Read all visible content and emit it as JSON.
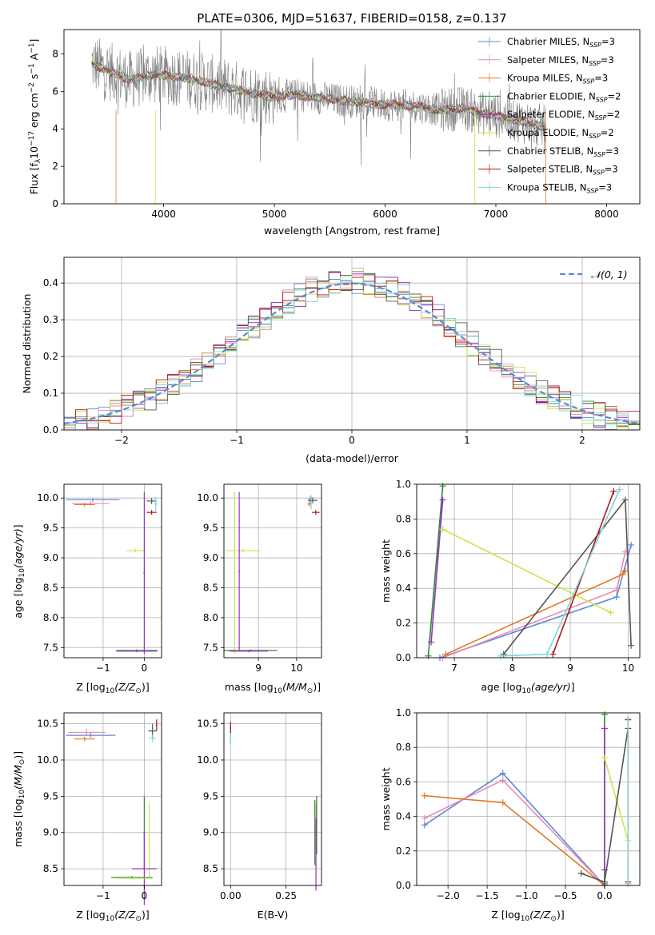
{
  "title": "PLATE=0306, MJD=51637, FIBERID=0158, z=0.137",
  "colors": {
    "chabrier_miles": "#5f87d6",
    "salpeter_miles": "#e68ab8",
    "kroupa_miles": "#e07a2a",
    "chabrier_elodie": "#2e8b3a",
    "salpeter_elodie": "#9a2fc2",
    "kroupa_elodie": "#c4e84a",
    "chabrier_stelib": "#555555",
    "salpeter_stelib": "#b01818",
    "kroupa_stelib": "#7ed6d6",
    "data": "#7f7f7f",
    "gauss": "#5f87d6"
  },
  "chart_data": [
    {
      "id": "spectrum",
      "type": "line",
      "xlabel": "wavelength [Angstrom, rest frame]",
      "ylabel_text": "Flux [f",
      "ylabel_tail": "10",
      "ylabel_unit": "erg cm",
      "ylabel_unit2": "s",
      "ylabel_unit3": "A",
      "xlim": [
        3100,
        8300
      ],
      "ylim": [
        0,
        9.3
      ],
      "xticks": [
        "4000",
        "5000",
        "6000",
        "7000",
        "8000"
      ],
      "yticks": [
        "0",
        "2",
        "4",
        "6",
        "8"
      ],
      "legend": [
        "Chabrier MILES, N_SSP=3",
        "Salpeter MILES, N_SSP=3",
        "Kroupa MILES, N_SSP=3",
        "Chabrier ELODIE, N_SSP=2",
        "Salpeter ELODIE, N_SSP=2",
        "Kroupa ELODIE, N_SSP=2",
        "Chabrier STELIB, N_SSP=3",
        "Salpeter STELIB, N_SSP=3",
        "Kroupa STELIB, N_SSP=3"
      ],
      "continuum_x": [
        3350,
        3500,
        3700,
        3900,
        4100,
        4300,
        4500,
        4800,
        5000,
        5200,
        5500,
        5800,
        6000,
        6300,
        6500,
        6700,
        6900,
        7100,
        7300,
        7450
      ],
      "continuum_y": [
        7.5,
        7.1,
        6.6,
        6.9,
        6.8,
        6.6,
        6.3,
        5.9,
        5.7,
        5.8,
        5.6,
        5.4,
        5.3,
        5.2,
        5.0,
        5.1,
        4.8,
        4.6,
        4.3,
        4.1
      ]
    },
    {
      "id": "residuals",
      "type": "histogram",
      "xlabel": "(data-model)/error",
      "ylabel": "Normed distribution",
      "xlim": [
        -2.5,
        2.5
      ],
      "ylim": [
        0,
        0.47
      ],
      "xticks": [
        "−2",
        "−1",
        "0",
        "1",
        "2"
      ],
      "yticks": [
        "0.0",
        "0.1",
        "0.2",
        "0.3",
        "0.4"
      ],
      "legend_label": "𝒩(0, 1)"
    },
    {
      "id": "age_vs_Z",
      "type": "errorbar",
      "xlabel": "Z [log",
      "ylabel": "age  [log",
      "xlim": [
        -1.95,
        0.42
      ],
      "ylim": [
        7.33,
        10.23
      ],
      "xticks": [
        "−1",
        "0"
      ],
      "yticks": [
        "7.5",
        "8.0",
        "8.5",
        "9.0",
        "9.5",
        "10.0"
      ],
      "points": [
        {
          "series": "chabrier_miles",
          "x": -1.25,
          "y": 9.97,
          "xerr": 0.65,
          "yerr": 0.03
        },
        {
          "series": "salpeter_miles",
          "x": -1.3,
          "y": 9.91,
          "xerr": 0.45,
          "yerr": 0.04
        },
        {
          "series": "kroupa_miles",
          "x": -1.45,
          "y": 9.89,
          "xerr": 0.25,
          "yerr": 0.03
        },
        {
          "series": "kroupa_elodie",
          "x": -0.22,
          "y": 9.12,
          "xerr": 0.22,
          "yerr": 0.03
        },
        {
          "series": "salpeter_elodie",
          "x": 0.0,
          "y": 8.75,
          "xerr": 0.02,
          "yerr": 1.35
        },
        {
          "series": "chabrier_elodie",
          "x": -0.18,
          "y": 7.45,
          "xerr": 0.5,
          "yerr": 0.02
        },
        {
          "series": "salpeter_elodie",
          "x": -0.18,
          "y": 7.44,
          "xerr": 0.5,
          "yerr": 0.02
        },
        {
          "series": "chabrier_stelib",
          "x": 0.18,
          "y": 9.95,
          "xerr": 0.12,
          "yerr": 0.05
        },
        {
          "series": "salpeter_stelib",
          "x": 0.18,
          "y": 9.76,
          "xerr": 0.12,
          "yerr": 0.04
        },
        {
          "series": "kroupa_stelib",
          "x": 0.28,
          "y": 9.9,
          "xerr": 0.04,
          "yerr": 0.12
        }
      ]
    },
    {
      "id": "age_vs_mass",
      "type": "errorbar",
      "xlabel": "mass [log",
      "xlim": [
        8.1,
        10.65
      ],
      "ylim": [
        7.33,
        10.23
      ],
      "xticks": [
        "9",
        "10"
      ],
      "yticks": [
        "7.5",
        "8.0",
        "8.5",
        "9.0",
        "9.5",
        "10.0"
      ],
      "points": [
        {
          "series": "kroupa_elodie",
          "x": 8.6,
          "y": 9.12,
          "xerr": 0.45,
          "yerr": 0.03
        },
        {
          "series": "kroupa_elodie",
          "x": 8.38,
          "y": 8.75,
          "xerr": 0.02,
          "yerr": 1.35
        },
        {
          "series": "salpeter_elodie",
          "x": 8.5,
          "y": 8.77,
          "xerr": 0.02,
          "yerr": 1.33
        },
        {
          "series": "chabrier_elodie",
          "x": 8.8,
          "y": 7.45,
          "xerr": 0.7,
          "yerr": 0.02
        },
        {
          "series": "salpeter_elodie",
          "x": 8.75,
          "y": 7.44,
          "xerr": 0.5,
          "yerr": 0.02
        },
        {
          "series": "chabrier_miles",
          "x": 10.35,
          "y": 9.97,
          "xerr": 0.05,
          "yerr": 0.05
        },
        {
          "series": "salpeter_miles",
          "x": 10.38,
          "y": 9.95,
          "xerr": 0.05,
          "yerr": 0.06
        },
        {
          "series": "kroupa_miles",
          "x": 10.33,
          "y": 9.9,
          "xerr": 0.05,
          "yerr": 0.04
        },
        {
          "series": "chabrier_stelib",
          "x": 10.42,
          "y": 9.96,
          "xerr": 0.12,
          "yerr": 0.05
        },
        {
          "series": "salpeter_stelib",
          "x": 10.5,
          "y": 9.76,
          "xerr": 0.1,
          "yerr": 0.04
        },
        {
          "series": "kroupa_stelib",
          "x": 10.38,
          "y": 9.93,
          "xerr": 0.04,
          "yerr": 0.12
        }
      ]
    },
    {
      "id": "weight_vs_age",
      "type": "line",
      "xlabel": "age  [log",
      "ylabel": "mass weight",
      "xlim": [
        6.35,
        10.2
      ],
      "ylim": [
        0,
        1.0
      ],
      "xticks": [
        "7",
        "8",
        "9",
        "10"
      ],
      "yticks": [
        "0.0",
        "0.2",
        "0.4",
        "0.6",
        "0.8",
        "1.0"
      ],
      "series": [
        {
          "key": "chabrier_miles",
          "x": [
            6.75,
            9.8,
            10.05
          ],
          "y": [
            0.0,
            0.35,
            0.65
          ]
        },
        {
          "key": "salpeter_miles",
          "x": [
            6.8,
            9.8,
            9.95
          ],
          "y": [
            0.0,
            0.39,
            0.61
          ]
        },
        {
          "key": "kroupa_miles",
          "x": [
            6.85,
            9.9,
            9.95
          ],
          "y": [
            0.02,
            0.48,
            0.5
          ]
        },
        {
          "key": "chabrier_elodie",
          "x": [
            6.55,
            6.8
          ],
          "y": [
            0.01,
            0.99
          ]
        },
        {
          "key": "salpeter_elodie",
          "x": [
            6.6,
            6.8
          ],
          "y": [
            0.09,
            0.91
          ]
        },
        {
          "key": "kroupa_elodie",
          "x": [
            6.8,
            9.7
          ],
          "y": [
            0.74,
            0.26
          ]
        },
        {
          "key": "chabrier_stelib",
          "x": [
            7.85,
            9.95,
            10.05
          ],
          "y": [
            0.02,
            0.91,
            0.07
          ]
        },
        {
          "key": "salpeter_stelib",
          "x": [
            8.7,
            9.75
          ],
          "y": [
            0.02,
            0.96
          ]
        },
        {
          "key": "kroupa_stelib",
          "x": [
            7.8,
            8.6,
            9.85
          ],
          "y": [
            0.01,
            0.02,
            0.97
          ]
        }
      ]
    },
    {
      "id": "mass_vs_Z",
      "type": "errorbar",
      "xlabel": "Z [log",
      "ylabel": "mass [log",
      "xlim": [
        -1.95,
        0.42
      ],
      "ylim": [
        8.27,
        10.65
      ],
      "xticks": [
        "−1",
        "0"
      ],
      "yticks": [
        "8.5",
        "9.0",
        "9.5",
        "10.0",
        "10.5"
      ],
      "points": [
        {
          "series": "chabrier_miles",
          "x": -1.3,
          "y": 10.34,
          "xerr": 0.6,
          "yerr": 0.03
        },
        {
          "series": "salpeter_miles",
          "x": -1.4,
          "y": 10.38,
          "xerr": 0.45,
          "yerr": 0.05
        },
        {
          "series": "kroupa_miles",
          "x": -1.45,
          "y": 10.29,
          "xerr": 0.25,
          "yerr": 0.03
        },
        {
          "series": "kroupa_elodie",
          "x": 0.12,
          "y": 8.9,
          "xerr": 0.02,
          "yerr": 0.5
        },
        {
          "series": "chabrier_elodie",
          "x": 0.0,
          "y": 9.0,
          "xerr": 0.02,
          "yerr": 0.5
        },
        {
          "series": "salpeter_elodie",
          "x": 0.0,
          "y": 8.5,
          "xerr": 0.3,
          "yerr": 0.5
        },
        {
          "series": "chabrier_elodie",
          "x": -0.3,
          "y": 8.38,
          "xerr": 0.5,
          "yerr": 0.02
        },
        {
          "series": "kroupa_elodie",
          "x": -0.25,
          "y": 8.37,
          "xerr": 0.45,
          "yerr": 0.02
        },
        {
          "series": "chabrier_stelib",
          "x": 0.2,
          "y": 10.4,
          "xerr": 0.1,
          "yerr": 0.1
        },
        {
          "series": "salpeter_stelib",
          "x": 0.3,
          "y": 10.48,
          "xerr": 0.02,
          "yerr": 0.08
        },
        {
          "series": "kroupa_stelib",
          "x": 0.2,
          "y": 10.3,
          "xerr": 0.08,
          "yerr": 0.05
        }
      ]
    },
    {
      "id": "mass_vs_EBV",
      "type": "errorbar",
      "xlabel": "E(B-V)",
      "xlim": [
        -0.03,
        0.41
      ],
      "ylim": [
        8.27,
        10.65
      ],
      "xticks": [
        "0.00",
        "0.25"
      ],
      "yticks": [
        "8.5",
        "9.0",
        "9.5",
        "10.0",
        "10.5"
      ],
      "points": [
        {
          "series": "chabrier_miles",
          "x": 0.0,
          "y": 10.35,
          "xerr": 0.002,
          "yerr": 0.12
        },
        {
          "series": "salpeter_stelib",
          "x": 0.0,
          "y": 10.45,
          "xerr": 0.002,
          "yerr": 0.08
        },
        {
          "series": "kroupa_stelib",
          "x": 0.0,
          "y": 10.3,
          "xerr": 0.002,
          "yerr": 0.07
        },
        {
          "series": "chabrier_elodie",
          "x": 0.38,
          "y": 9.0,
          "xerr": 0.002,
          "yerr": 0.45
        },
        {
          "series": "kroupa_elodie",
          "x": 0.385,
          "y": 8.9,
          "xerr": 0.002,
          "yerr": 0.5
        },
        {
          "series": "salpeter_elodie",
          "x": 0.385,
          "y": 8.7,
          "xerr": 0.002,
          "yerr": 0.5
        },
        {
          "series": "chabrier_stelib",
          "x": 0.388,
          "y": 9.1,
          "xerr": 0.002,
          "yerr": 0.4
        }
      ]
    },
    {
      "id": "weight_vs_Z",
      "type": "line",
      "xlabel": "Z [log",
      "ylabel": "mass weight",
      "xlim": [
        -2.4,
        0.45
      ],
      "ylim": [
        0,
        1.0
      ],
      "xticks": [
        "−2.0",
        "−1.5",
        "−1.0",
        "−0.5",
        "0.0"
      ],
      "yticks": [
        "0.0",
        "0.2",
        "0.4",
        "0.6",
        "0.8",
        "1.0"
      ],
      "series": [
        {
          "key": "chabrier_miles",
          "x": [
            -2.3,
            -1.3,
            0.0
          ],
          "y": [
            0.35,
            0.65,
            0.0
          ]
        },
        {
          "key": "salpeter_miles",
          "x": [
            -2.3,
            -1.3,
            0.0
          ],
          "y": [
            0.39,
            0.61,
            0.0
          ]
        },
        {
          "key": "kroupa_miles",
          "x": [
            -2.3,
            -1.3,
            0.0
          ],
          "y": [
            0.52,
            0.48,
            0.0
          ]
        },
        {
          "key": "chabrier_elodie",
          "x": [
            0.0,
            0.0
          ],
          "y": [
            0.01,
            0.99
          ]
        },
        {
          "key": "salpeter_elodie",
          "x": [
            0.0,
            0.0
          ],
          "y": [
            0.09,
            0.91
          ]
        },
        {
          "key": "kroupa_elodie",
          "x": [
            0.0,
            0.3
          ],
          "y": [
            0.74,
            0.26
          ]
        },
        {
          "key": "chabrier_stelib",
          "x": [
            -0.3,
            0.0,
            0.3
          ],
          "y": [
            0.07,
            0.02,
            0.91
          ]
        },
        {
          "key": "salpeter_stelib",
          "x": [
            0.3,
            0.3
          ],
          "y": [
            0.02,
            0.96
          ]
        },
        {
          "key": "kroupa_stelib",
          "x": [
            0.3,
            0.3
          ],
          "y": [
            0.01,
            0.97
          ]
        }
      ]
    }
  ],
  "sub": {
    "lambda": "λ",
    "minus17": "−17",
    "minus2": "−2",
    "minus1": "−1",
    "ssp": "SSP",
    "ten": "10",
    "age_yr": "(age/yr)",
    "z_zsun": "(Z/Z",
    "m_msun": "(M/M",
    "sun": "⊙",
    "close": ")]",
    "close_yr": ")]"
  }
}
